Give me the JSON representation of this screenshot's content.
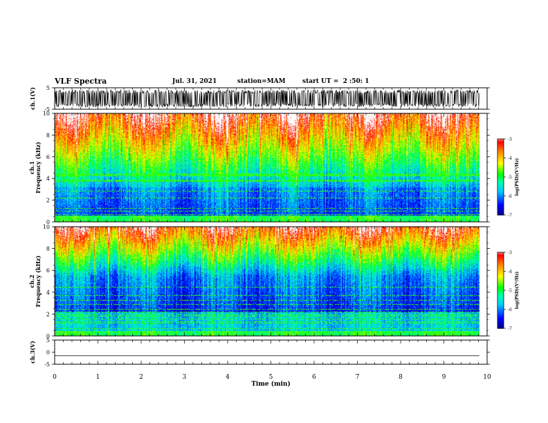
{
  "header": {
    "title": "VLF Spectra",
    "date": "Jul. 31, 2021",
    "station": "station=MAM",
    "start": "start UT =  2 :50: 1"
  },
  "chart_data": [
    {
      "type": "line",
      "panel": "waveform-ch1",
      "ylabel": "ch.1(V)",
      "ylim": [
        -5,
        5
      ],
      "yticks": [
        "5",
        "-5"
      ],
      "xlim": [
        0,
        10
      ],
      "data_extent_min": 9.82,
      "description_of_signal": "noisy waveform, amplitude roughly ±4 V"
    },
    {
      "type": "heatmap",
      "panel": "spectrogram-ch1",
      "ylabel": "ch.1 Frequency (kHz)",
      "ylim": [
        0,
        10
      ],
      "yticks": [
        "0",
        "2",
        "4",
        "6",
        "8",
        "10"
      ],
      "xlim": [
        0,
        10
      ],
      "colorbar": {
        "label": "log(PSD)(V²/Hz)",
        "min": -7,
        "max": -3,
        "ticks": [
          "-3",
          "-4",
          "-5",
          "-6",
          "-7"
        ]
      }
    },
    {
      "type": "heatmap",
      "panel": "spectrogram-ch2",
      "ylabel": "ch.2 Frequency (kHz)",
      "ylim": [
        0,
        10
      ],
      "yticks": [
        "0",
        "2",
        "4",
        "6",
        "8",
        "10"
      ],
      "xlim": [
        0,
        10
      ],
      "colorbar": {
        "label": "log(PSD)(V²/Hz)",
        "min": -7,
        "max": -3,
        "ticks": [
          "-3",
          "-4",
          "-5",
          "-6",
          "-7"
        ]
      }
    },
    {
      "type": "line",
      "panel": "waveform-ch3",
      "ylabel": "ch.3(V)",
      "ylim": [
        -5,
        5
      ],
      "yticks": [
        "5",
        "0",
        "-5"
      ],
      "xlim": [
        0,
        10
      ],
      "series": [
        {
          "values_constant": -1.5
        }
      ]
    }
  ],
  "xaxis": {
    "label": "Time (min)",
    "ticks": [
      "0",
      "1",
      "2",
      "3",
      "4",
      "5",
      "6",
      "7",
      "8",
      "9",
      "10"
    ]
  },
  "colors": {
    "line": "#000000",
    "colormap": [
      "#00008c",
      "#0000ff",
      "#00c8ff",
      "#00ffb4",
      "#00ff00",
      "#ffff00",
      "#ff8c00",
      "#ff0000",
      "#ffffff"
    ]
  }
}
